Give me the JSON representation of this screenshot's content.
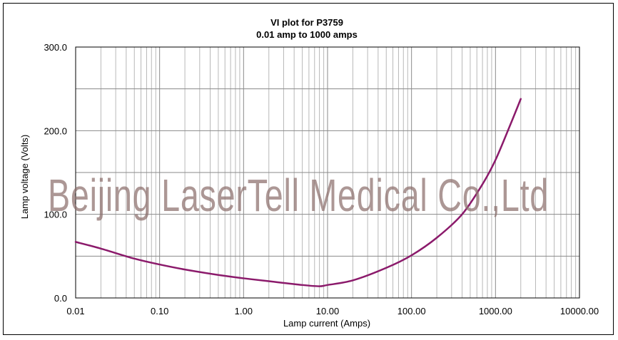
{
  "chart_data": {
    "type": "line",
    "title": "VI plot for P3759",
    "subtitle": "0.01 amp to 1000 amps",
    "xlabel": "Lamp current  (Amps)",
    "ylabel": "Lamp voltage  (Volts)",
    "x_scale": "log",
    "xlim": [
      0.01,
      10000
    ],
    "ylim": [
      0,
      300
    ],
    "x_ticks": [
      0.01,
      0.1,
      1,
      10,
      100,
      1000,
      10000
    ],
    "x_tick_labels": [
      "0.01",
      "0.10",
      "1.00",
      "10.00",
      "100.00",
      "1000.00",
      "10000.00"
    ],
    "y_ticks": [
      0,
      100,
      200,
      300
    ],
    "y_tick_labels": [
      "0.0",
      "100.0",
      "200.0",
      "300.0"
    ],
    "y_minor_step": 50,
    "grid": true,
    "legend": "none",
    "series": [
      {
        "color": "#8b1a6b",
        "points": [
          [
            0.01,
            67
          ],
          [
            0.02,
            59
          ],
          [
            0.05,
            47
          ],
          [
            0.1,
            40
          ],
          [
            0.2,
            34
          ],
          [
            0.5,
            27.5
          ],
          [
            1,
            23.5
          ],
          [
            2,
            20
          ],
          [
            5,
            15.5
          ],
          [
            8,
            14
          ],
          [
            10,
            15.5
          ],
          [
            20,
            21
          ],
          [
            50,
            36
          ],
          [
            100,
            51
          ],
          [
            200,
            72
          ],
          [
            400,
            100
          ],
          [
            700,
            136
          ],
          [
            1000,
            165
          ],
          [
            1500,
            207
          ],
          [
            2000,
            238
          ]
        ]
      }
    ]
  },
  "watermark": {
    "text": "Beijing LaserTell Medical Co.,Ltd",
    "color": "#8c6f6c"
  }
}
